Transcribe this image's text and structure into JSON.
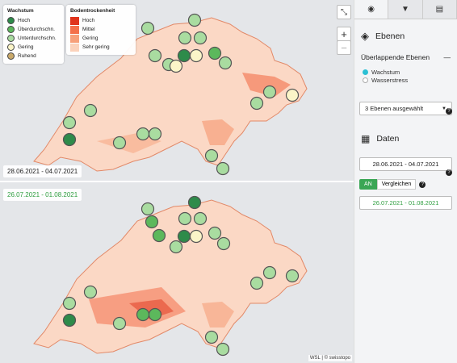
{
  "map": {
    "top": {
      "date_range": "28.06.2021 - 04.07.2021"
    },
    "bottom": {
      "date_range": "26.07.2021 - 01.08.2021"
    },
    "legend_growth": {
      "title": "Wachstum",
      "items": [
        {
          "label": "Hoch",
          "color": "#2e8b4a"
        },
        {
          "label": "Überdurchschn.",
          "color": "#5cb85c"
        },
        {
          "label": "Unterdurchschn.",
          "color": "#a9dca0"
        },
        {
          "label": "Gering",
          "color": "#fbf5c8"
        },
        {
          "label": "Ruhend",
          "color": "#c9a96a"
        }
      ]
    },
    "legend_soil": {
      "title": "Bodentrockenheit",
      "items": [
        {
          "label": "Hoch",
          "color": "#e0341c"
        },
        {
          "label": "Mittel",
          "color": "#f4704a"
        },
        {
          "label": "Gering",
          "color": "#f7a07a"
        },
        {
          "label": "Sehr gering",
          "color": "#fbd2bb"
        }
      ]
    },
    "attribution": "WSL | © swisstopo",
    "zoom_in": "+",
    "zoom_out": "−",
    "fullscreen_icon": "collapse-icon"
  },
  "sidebar": {
    "tabs": [
      {
        "icon": "eye-icon",
        "glyph": "◉"
      },
      {
        "icon": "filter-icon",
        "glyph": "▼"
      },
      {
        "icon": "document-icon",
        "glyph": "▤"
      }
    ],
    "layers_title": "Ebenen",
    "overlap_title": "Überlappende Ebenen",
    "overlap_toggle": "—",
    "options": [
      {
        "label": "Wachstum",
        "selected": true
      },
      {
        "label": "Wasserstress",
        "selected": false
      }
    ],
    "help": "?",
    "layers_selected": "3 Ebenen ausgewählt",
    "data_title": "Daten",
    "date1": "28.06.2021 - 04.07.2021",
    "compare_on": "AN",
    "compare_label": "Vergleichen",
    "date2": "26.07.2021 - 01.08.2021"
  },
  "stations": {
    "top": [
      [
        241,
        25,
        "#a9dca0"
      ],
      [
        183,
        35,
        "#a9dca0"
      ],
      [
        229,
        47,
        "#a9dca0"
      ],
      [
        248,
        47,
        "#a9dca0"
      ],
      [
        192,
        69,
        "#a9dca0"
      ],
      [
        209,
        80,
        "#a9dca0"
      ],
      [
        228,
        69,
        "#2e8b4a"
      ],
      [
        243,
        69,
        "#fbf5c8"
      ],
      [
        266,
        66,
        "#5cb85c"
      ],
      [
        279,
        78,
        "#a9dca0"
      ],
      [
        218,
        82,
        "#fbf5c8"
      ],
      [
        334,
        114,
        "#a9dca0"
      ],
      [
        318,
        128,
        "#a9dca0"
      ],
      [
        362,
        118,
        "#fbf5c8"
      ],
      [
        112,
        137,
        "#a9dca0"
      ],
      [
        86,
        152,
        "#a9dca0"
      ],
      [
        86,
        173,
        "#2e8b4a"
      ],
      [
        148,
        177,
        "#a9dca0"
      ],
      [
        177,
        166,
        "#a9dca0"
      ],
      [
        192,
        166,
        "#a9dca0"
      ],
      [
        262,
        193,
        "#a9dca0"
      ],
      [
        276,
        209,
        "#a9dca0"
      ]
    ],
    "bottom": [
      [
        241,
        251,
        "#2e8b4a"
      ],
      [
        183,
        259,
        "#a9dca0"
      ],
      [
        188,
        275,
        "#5cb85c"
      ],
      [
        229,
        271,
        "#a9dca0"
      ],
      [
        248,
        271,
        "#a9dca0"
      ],
      [
        197,
        292,
        "#5cb85c"
      ],
      [
        228,
        293,
        "#2e8b4a"
      ],
      [
        243,
        293,
        "#fbf5c8"
      ],
      [
        266,
        289,
        "#a9dca0"
      ],
      [
        277,
        302,
        "#a9dca0"
      ],
      [
        218,
        306,
        "#a9dca0"
      ],
      [
        334,
        338,
        "#a9dca0"
      ],
      [
        318,
        351,
        "#a9dca0"
      ],
      [
        362,
        342,
        "#a9dca0"
      ],
      [
        112,
        362,
        "#a9dca0"
      ],
      [
        86,
        376,
        "#a9dca0"
      ],
      [
        86,
        397,
        "#2e8b4a"
      ],
      [
        148,
        401,
        "#a9dca0"
      ],
      [
        177,
        390,
        "#5cb85c"
      ],
      [
        192,
        390,
        "#5cb85c"
      ],
      [
        262,
        418,
        "#a9dca0"
      ],
      [
        276,
        433,
        "#a9dca0"
      ]
    ]
  }
}
